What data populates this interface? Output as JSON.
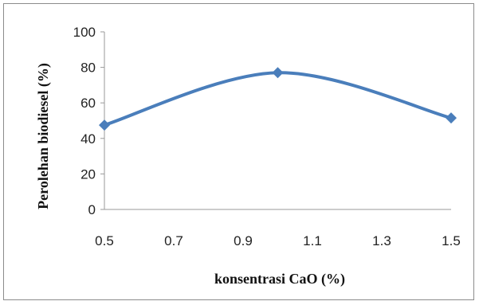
{
  "chart_data": {
    "type": "line",
    "title": "",
    "xlabel": "konsentrasi CaO (%)",
    "ylabel": "Perolehan biodiesel (%)",
    "x": [
      0.5,
      1.0,
      1.5
    ],
    "series": [
      {
        "values": [
          47.5,
          77,
          51.5
        ],
        "color": "#4a7ebb",
        "marker": "diamond",
        "smooth": true
      }
    ],
    "xlim": [
      0.5,
      1.5
    ],
    "ylim": [
      0,
      100
    ],
    "x_ticks": [
      "0.5",
      "0.7",
      "0.9",
      "1.1",
      "1.3",
      "1.5"
    ],
    "y_ticks": [
      "0",
      "20",
      "40",
      "60",
      "80",
      "100"
    ],
    "grid": false,
    "legend": "none"
  }
}
